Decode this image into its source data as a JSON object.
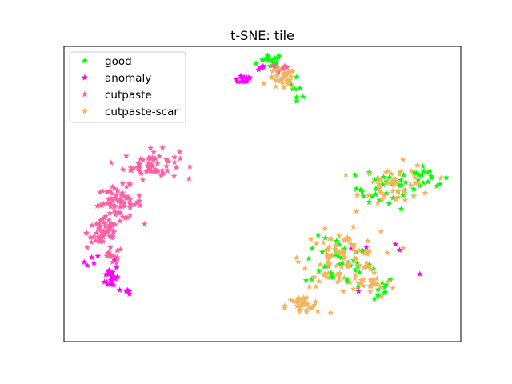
{
  "chart_data": {
    "type": "scatter",
    "title": "t-SNE: tile",
    "xlabel": "",
    "ylabel": "",
    "xlim": [
      0,
      100
    ],
    "ylim": [
      0,
      100
    ],
    "axis_ticks": false,
    "grid": false,
    "legend_position": "top-left",
    "marker": "star",
    "series": [
      {
        "name": "good",
        "color": "#00ff00",
        "regions": [
          {
            "cx": 52,
            "cy": 95,
            "sx": 2.5,
            "sy": 2.0,
            "n": 18
          },
          {
            "cx": 59,
            "cy": 86,
            "sx": 1.5,
            "sy": 2.5,
            "n": 8
          },
          {
            "cx": 82,
            "cy": 52,
            "sx": 6.0,
            "sy": 5.0,
            "n": 38
          },
          {
            "cx": 92,
            "cy": 55,
            "sx": 3.5,
            "sy": 2.5,
            "n": 15
          },
          {
            "cx": 69,
            "cy": 27,
            "sx": 6.0,
            "sy": 6.0,
            "n": 42
          },
          {
            "cx": 78,
            "cy": 18,
            "sx": 4.0,
            "sy": 3.0,
            "n": 12
          }
        ]
      },
      {
        "name": "anomaly",
        "color": "#ff00ff",
        "regions": [
          {
            "cx": 45,
            "cy": 89,
            "sx": 2.0,
            "sy": 1.2,
            "n": 14
          },
          {
            "cx": 50,
            "cy": 93,
            "sx": 1.5,
            "sy": 1.0,
            "n": 5
          },
          {
            "cx": 12,
            "cy": 22,
            "sx": 1.2,
            "sy": 3.0,
            "n": 20
          },
          {
            "cx": 16,
            "cy": 17,
            "sx": 0.8,
            "sy": 0.6,
            "n": 8
          },
          {
            "cx": 8,
            "cy": 28,
            "sx": 3.0,
            "sy": 1.5,
            "n": 6
          },
          {
            "cx": 80,
            "cy": 30,
            "sx": 8.0,
            "sy": 8.0,
            "n": 6
          }
        ]
      },
      {
        "name": "cutpaste",
        "color": "#ff5fa2",
        "regions": [
          {
            "cx": 22,
            "cy": 60,
            "sx": 5.0,
            "sy": 3.5,
            "n": 60
          },
          {
            "cx": 14,
            "cy": 47,
            "sx": 4.0,
            "sy": 4.0,
            "n": 70
          },
          {
            "cx": 10,
            "cy": 37,
            "sx": 3.0,
            "sy": 4.0,
            "n": 50
          },
          {
            "cx": 12,
            "cy": 29,
            "sx": 2.0,
            "sy": 2.0,
            "n": 15
          },
          {
            "cx": 54,
            "cy": 92,
            "sx": 2.0,
            "sy": 1.5,
            "n": 10
          }
        ]
      },
      {
        "name": "cutpaste-scar",
        "color": "#f4b45c",
        "regions": [
          {
            "cx": 55,
            "cy": 89,
            "sx": 2.5,
            "sy": 2.5,
            "n": 35
          },
          {
            "cx": 84,
            "cy": 53,
            "sx": 6.5,
            "sy": 5.0,
            "n": 45
          },
          {
            "cx": 70,
            "cy": 28,
            "sx": 7.0,
            "sy": 6.5,
            "n": 95
          },
          {
            "cx": 60,
            "cy": 12,
            "sx": 3.0,
            "sy": 2.5,
            "n": 30
          },
          {
            "cx": 78,
            "cy": 19,
            "sx": 4.0,
            "sy": 3.0,
            "n": 18
          }
        ]
      }
    ]
  }
}
